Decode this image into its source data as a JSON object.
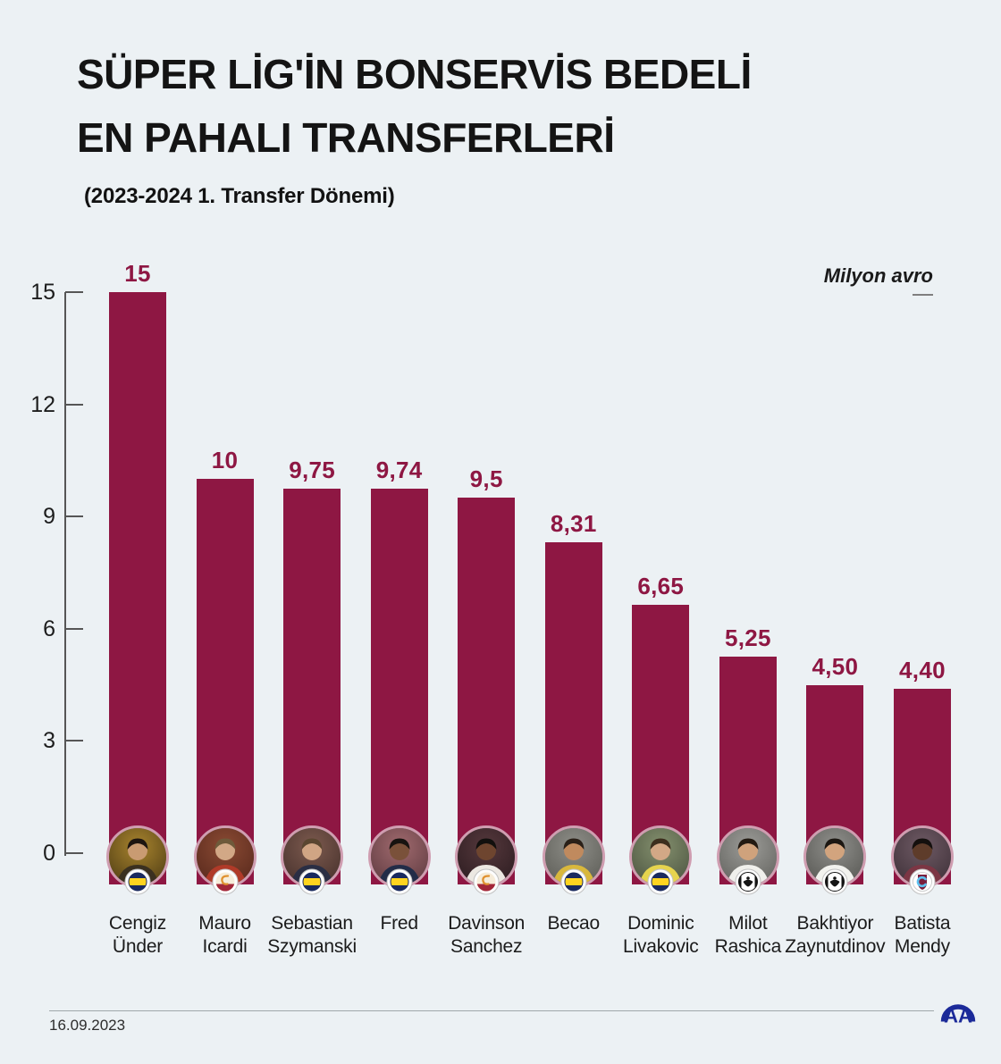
{
  "page": {
    "background_color": "#ecf1f4"
  },
  "header": {
    "title_line1": "SÜPER LİG'İN BONSERVİS BEDELİ",
    "title_line2": "EN PAHALI TRANSFERLERİ",
    "subtitle": "(2023-2024 1. Transfer Dönemi)"
  },
  "chart_data": {
    "type": "bar",
    "title": "Süper Lig'in bonservis bedeli en pahalı transferleri (2023-2024 1. Transfer Dönemi)",
    "unit_label": "Milyon avro",
    "xlabel": "",
    "ylabel": "Milyon avro",
    "ylim": [
      0,
      15
    ],
    "yticks": [
      15,
      12,
      9,
      6,
      3,
      0
    ],
    "grid": false,
    "legend": false,
    "bar_color": "#8e1743",
    "categories": [
      "Cengiz Ünder",
      "Mauro Icardi",
      "Sebastian Szymanski",
      "Fred",
      "Davinson Sanchez",
      "Becao",
      "Dominic Livakovic",
      "Milot Rashica",
      "Bakhtiyor Zaynutdinov",
      "Batista Mendy"
    ],
    "values": [
      15,
      10,
      9.75,
      9.74,
      9.5,
      8.31,
      6.65,
      5.25,
      4.5,
      4.4
    ],
    "value_labels": [
      "15",
      "10",
      "9,75",
      "9,74",
      "9,5",
      "8,31",
      "6,65",
      "5,25",
      "4,50",
      "4,40"
    ]
  },
  "players": [
    {
      "name_lines": [
        "Cengiz",
        "Ünder"
      ],
      "club": "fenerbahce",
      "photo": {
        "bg1": "#a8842e",
        "bg2": "#4e3c14",
        "jersey": "#3a3020",
        "skin": "#c99b72",
        "hair": "#1d1510"
      }
    },
    {
      "name_lines": [
        "Mauro",
        "Icardi"
      ],
      "club": "galatasaray",
      "photo": {
        "bg1": "#8a4a33",
        "bg2": "#57281c",
        "jersey": "#b03a28",
        "skin": "#d2a886",
        "hair": "#6e5a3a"
      }
    },
    {
      "name_lines": [
        "Sebastian",
        "Szymanski"
      ],
      "club": "fenerbahce",
      "photo": {
        "bg1": "#7c5a4e",
        "bg2": "#46302c",
        "jersey": "#2a2e44",
        "skin": "#d0a584",
        "hair": "#5a4630"
      }
    },
    {
      "name_lines": [
        "Fred"
      ],
      "club": "fenerbahce",
      "photo": {
        "bg1": "#a06a6e",
        "bg2": "#5e3a40",
        "jersey": "#222c48",
        "skin": "#7a513a",
        "hair": "#171310"
      }
    },
    {
      "name_lines": [
        "Davinson",
        "Sanchez"
      ],
      "club": "galatasaray",
      "photo": {
        "bg1": "#55383c",
        "bg2": "#2c1c20",
        "jersey": "#ece8e2",
        "skin": "#6e452f",
        "hair": "#12100e"
      }
    },
    {
      "name_lines": [
        "Becao"
      ],
      "club": "fenerbahce",
      "photo": {
        "bg1": "#8e8e88",
        "bg2": "#5c5c56",
        "jersey": "#d9b83c",
        "skin": "#c08a5e",
        "hair": "#2a2018"
      }
    },
    {
      "name_lines": [
        "Dominic",
        "Livakovic"
      ],
      "club": "fenerbahce",
      "photo": {
        "bg1": "#84906e",
        "bg2": "#4c5440",
        "jersey": "#e6d44e",
        "skin": "#d2a886",
        "hair": "#3c2e1e"
      }
    },
    {
      "name_lines": [
        "Milot",
        "Rashica"
      ],
      "club": "besiktas",
      "photo": {
        "bg1": "#9c9c98",
        "bg2": "#62625e",
        "jersey": "#f0f0ec",
        "skin": "#cfa27c",
        "hair": "#221a12"
      }
    },
    {
      "name_lines": [
        "Bakhtiyor",
        "Zaynutdinov"
      ],
      "club": "besiktas",
      "photo": {
        "bg1": "#90908c",
        "bg2": "#565652",
        "jersey": "#f2f2ee",
        "skin": "#d2a47e",
        "hair": "#1c1712"
      }
    },
    {
      "name_lines": [
        "Batista",
        "Mendy"
      ],
      "club": "trabzonspor",
      "photo": {
        "bg1": "#6e5a64",
        "bg2": "#3e3038",
        "jersey": "#7c3644",
        "skin": "#5e3c2a",
        "hair": "#14100e"
      }
    }
  ],
  "clubs": {
    "fenerbahce": {
      "name": "Fenerbahçe",
      "primary": "#1a2a5e",
      "secondary": "#ffd41f"
    },
    "galatasaray": {
      "name": "Galatasaray",
      "primary": "#a32638",
      "secondary": "#e0912f",
      "field": "#f6ecd9"
    },
    "besiktas": {
      "name": "Beşiktaş",
      "primary": "#141414",
      "secondary": "#ffffff"
    },
    "trabzonspor": {
      "name": "Trabzonspor",
      "primary": "#7a1f3d",
      "secondary": "#5ec1ef"
    }
  },
  "footer": {
    "date": "16.09.2023",
    "agency": "AA",
    "logo_color": "#1b2a99"
  }
}
